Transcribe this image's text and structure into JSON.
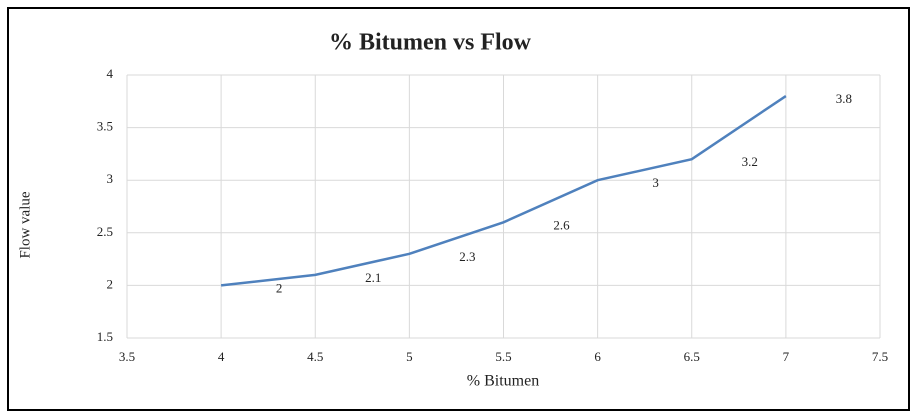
{
  "chart_data": {
    "type": "line",
    "title": "% Bitumen vs Flow",
    "x_label": "% Bitumen",
    "y_label": "Flow value",
    "x": [
      4,
      4.5,
      5,
      5.5,
      6,
      6.5,
      7
    ],
    "series": [
      {
        "name": "Flow value",
        "color": "#4f81bd",
        "values": [
          2,
          2.1,
          2.3,
          2.6,
          3,
          3.2,
          3.8
        ]
      }
    ],
    "xlim": [
      3.5,
      7.5
    ],
    "xticks": [
      3.5,
      4,
      4.5,
      5,
      5.5,
      6,
      6.5,
      7,
      7.5
    ],
    "ylim": [
      1.5,
      4
    ],
    "yticks": [
      1.5,
      2,
      2.5,
      3,
      3.5,
      4
    ],
    "grid": true,
    "data_labels": true
  }
}
